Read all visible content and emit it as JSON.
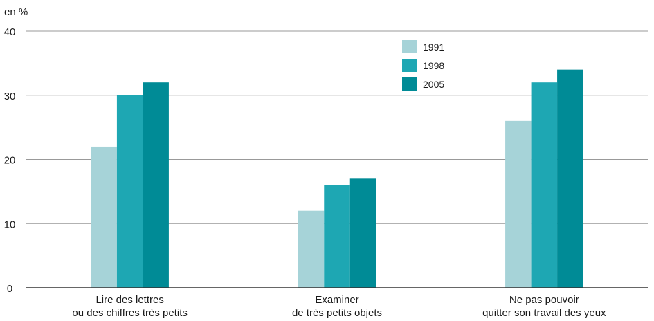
{
  "chart_data": {
    "type": "bar",
    "ylabel": "en %",
    "ylim": [
      0,
      40
    ],
    "yticks": [
      0,
      10,
      20,
      30,
      40
    ],
    "grid": true,
    "legend_position": "top-right",
    "categories": [
      [
        "Lire des lettres",
        "ou des chiffres très petits"
      ],
      [
        "Examiner",
        "de très petits objets"
      ],
      [
        "Ne pas pouvoir",
        "quitter son travail des yeux"
      ]
    ],
    "series": [
      {
        "name": "1991",
        "color": "#a6d3d8",
        "values": [
          22,
          12,
          26
        ]
      },
      {
        "name": "1998",
        "color": "#1ea7b3",
        "values": [
          30,
          16,
          32
        ]
      },
      {
        "name": "2005",
        "color": "#008b96",
        "values": [
          32,
          17,
          34
        ]
      }
    ]
  }
}
